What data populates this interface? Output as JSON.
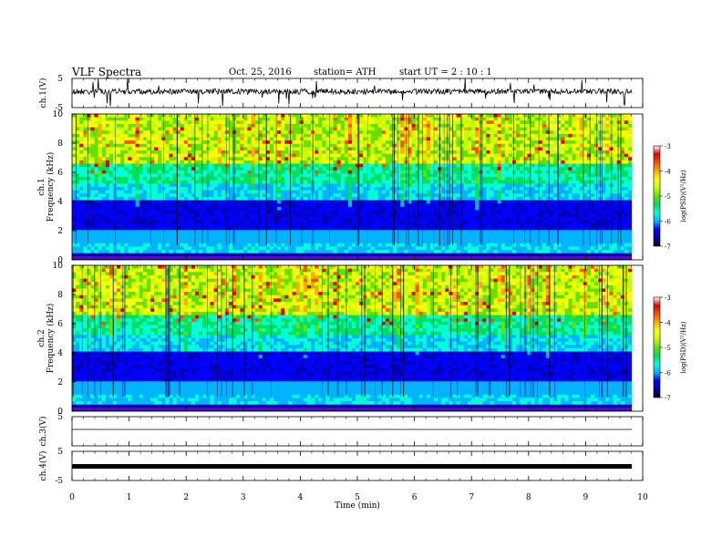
{
  "header": {
    "title": "VLF  Spectra",
    "date": "Oct. 25, 2016",
    "station": "station= ATH",
    "start": "start  UT  =   2  : 10 : 1"
  },
  "chart_data": [
    {
      "type": "line",
      "name": "ch1-waveform",
      "ylabel": "ch.1(V)",
      "ylim": [
        -5,
        5
      ],
      "yticks": [
        "5",
        "-5"
      ]
    },
    {
      "type": "heatmap",
      "name": "ch1-spectrogram",
      "ylabel_channel": "ch.1",
      "ylabel": "Frequency  (kHz)",
      "ylim": [
        0,
        10
      ],
      "yticks": [
        "0",
        "2",
        "4",
        "6",
        "8",
        "10"
      ],
      "colorbar": {
        "label": "log(PSD)(V²/Hz)",
        "range": [
          -7,
          -3
        ],
        "ticks": [
          "-3",
          "-4",
          "-5",
          "-6",
          "-7"
        ]
      }
    },
    {
      "type": "heatmap",
      "name": "ch2-spectrogram",
      "ylabel_channel": "ch.2",
      "ylabel": "Frequency  (kHz)",
      "ylim": [
        0,
        10
      ],
      "yticks": [
        "0",
        "2",
        "4",
        "6",
        "8",
        "10"
      ],
      "colorbar": {
        "label": "log(PSD)(V²/Hz)",
        "range": [
          -7,
          -3
        ],
        "ticks": [
          "-3",
          "-4",
          "-5",
          "-6",
          "-7"
        ]
      }
    },
    {
      "type": "line",
      "name": "ch3-waveform",
      "ylabel": "ch.3(V)",
      "ylim": [
        -5,
        5
      ],
      "yticks": [
        "5"
      ]
    },
    {
      "type": "line",
      "name": "ch4-waveform",
      "ylabel": "ch.4(V)",
      "ylim": [
        -5,
        5
      ],
      "yticks": [
        "5",
        "-5"
      ]
    }
  ],
  "xaxis": {
    "label": "Time  (min)",
    "xlim": [
      0,
      10
    ],
    "ticks": [
      "0",
      "1",
      "2",
      "3",
      "4",
      "5",
      "6",
      "7",
      "8",
      "9",
      "10"
    ]
  },
  "colors": {
    "ink": "#000000",
    "scale": [
      "#000000",
      "#0000b4",
      "#0000ff",
      "#00b4ff",
      "#00ffd8",
      "#00e05a",
      "#66e000",
      "#c8ff00",
      "#ffff00",
      "#ffaa00",
      "#ff5000",
      "#e00000",
      "#ffffff"
    ]
  }
}
